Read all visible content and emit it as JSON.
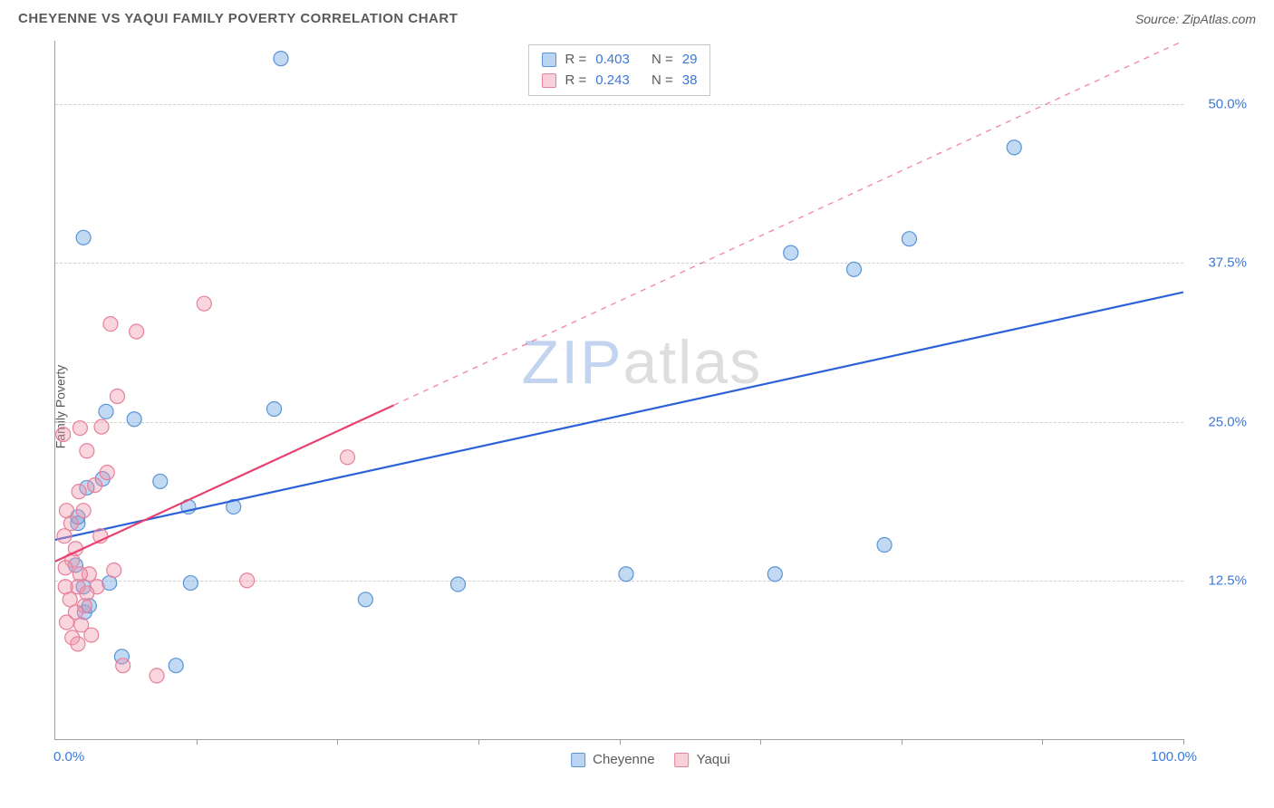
{
  "title": "CHEYENNE VS YAQUI FAMILY POVERTY CORRELATION CHART",
  "source": "Source: ZipAtlas.com",
  "ylabel": "Family Poverty",
  "watermark_z": "ZIP",
  "watermark_rest": "atlas",
  "chart": {
    "type": "scatter",
    "xlim": [
      0,
      100
    ],
    "ylim": [
      0,
      55
    ],
    "yticks": [
      12.5,
      25.0,
      37.5,
      50.0
    ],
    "ytick_labels": [
      "12.5%",
      "25.0%",
      "37.5%",
      "50.0%"
    ],
    "xtick_minors": [
      12.5,
      25,
      37.5,
      50,
      62.5,
      75,
      87.5,
      100
    ],
    "xtick_left": "0.0%",
    "xtick_right": "100.0%",
    "background_color": "#ffffff",
    "grid_color": "#d0d0d0",
    "series": [
      {
        "name": "Cheyenne",
        "color_fill": "rgba(120,170,230,0.45)",
        "color_stroke": "#5a94d6",
        "marker_r": 8,
        "trend_color": "#2c62d6",
        "trend_width": 2.2,
        "trend_x1": 0,
        "trend_y1": 15.7,
        "trend_x2": 100,
        "trend_y2": 35.2,
        "trend_dash": "",
        "R": "0.403",
        "N": "29",
        "points": [
          [
            20,
            53.6
          ],
          [
            2.5,
            39.5
          ],
          [
            75.7,
            39.4
          ],
          [
            65.2,
            38.3
          ],
          [
            85.0,
            46.6
          ],
          [
            70.8,
            37.0
          ],
          [
            4.5,
            25.8
          ],
          [
            7.0,
            25.2
          ],
          [
            19.4,
            26.0
          ],
          [
            4.2,
            20.5
          ],
          [
            2.8,
            19.8
          ],
          [
            9.3,
            20.3
          ],
          [
            15.8,
            18.3
          ],
          [
            11.8,
            18.3
          ],
          [
            2.0,
            17.0
          ],
          [
            73.5,
            15.3
          ],
          [
            50.6,
            13.0
          ],
          [
            63.8,
            13.0
          ],
          [
            35.7,
            12.2
          ],
          [
            27.5,
            11.0
          ],
          [
            12.0,
            12.3
          ],
          [
            4.8,
            12.3
          ],
          [
            2.5,
            12.0
          ],
          [
            2.6,
            10.0
          ],
          [
            3.0,
            10.5
          ],
          [
            5.9,
            6.5
          ],
          [
            10.7,
            5.8
          ],
          [
            1.8,
            13.7
          ],
          [
            2.0,
            17.5
          ]
        ]
      },
      {
        "name": "Yaqui",
        "color_fill": "rgba(240,150,170,0.40)",
        "color_stroke": "#e87f9c",
        "marker_r": 8,
        "trend_color": "#e8416f",
        "trend_width": 2.2,
        "trend_x1": 0,
        "trend_y1": 14.0,
        "trend_x2": 30,
        "trend_y2": 26.3,
        "trend_dash_x1": 30,
        "trend_dash_y1": 26.3,
        "trend_dash_x2": 100,
        "trend_dash_y2": 55.0,
        "R": "0.243",
        "N": "38",
        "points": [
          [
            13.2,
            34.3
          ],
          [
            4.9,
            32.7
          ],
          [
            7.2,
            32.1
          ],
          [
            5.5,
            27.0
          ],
          [
            4.1,
            24.6
          ],
          [
            2.2,
            24.5
          ],
          [
            2.8,
            22.7
          ],
          [
            0.7,
            24.0
          ],
          [
            4.6,
            21.0
          ],
          [
            3.5,
            20.0
          ],
          [
            2.1,
            19.5
          ],
          [
            1.0,
            18.0
          ],
          [
            2.5,
            18.0
          ],
          [
            25.9,
            22.2
          ],
          [
            4.0,
            16.0
          ],
          [
            0.8,
            16.0
          ],
          [
            1.8,
            15.0
          ],
          [
            5.2,
            13.3
          ],
          [
            3.0,
            13.0
          ],
          [
            1.5,
            14.1
          ],
          [
            2.2,
            13.0
          ],
          [
            3.7,
            12.0
          ],
          [
            2.0,
            12.0
          ],
          [
            0.9,
            12.0
          ],
          [
            1.3,
            11.0
          ],
          [
            17.0,
            12.5
          ],
          [
            2.6,
            10.5
          ],
          [
            1.8,
            10.0
          ],
          [
            1.0,
            9.2
          ],
          [
            2.3,
            9.0
          ],
          [
            3.2,
            8.2
          ],
          [
            1.5,
            8.0
          ],
          [
            2.0,
            7.5
          ],
          [
            9.0,
            5.0
          ],
          [
            6.0,
            5.8
          ],
          [
            2.8,
            11.5
          ],
          [
            0.9,
            13.5
          ],
          [
            1.4,
            17.0
          ]
        ]
      }
    ]
  },
  "legend_top": {
    "rows": [
      {
        "swatch": "blue",
        "R_label": "R =",
        "R_val": "0.403",
        "N_label": "N =",
        "N_val": "29"
      },
      {
        "swatch": "pink",
        "R_label": "R =",
        "R_val": "0.243",
        "N_label": "N =",
        "N_val": "38"
      }
    ]
  },
  "legend_bottom": {
    "items": [
      {
        "swatch": "blue",
        "label": "Cheyenne"
      },
      {
        "swatch": "pink",
        "label": "Yaqui"
      }
    ]
  }
}
